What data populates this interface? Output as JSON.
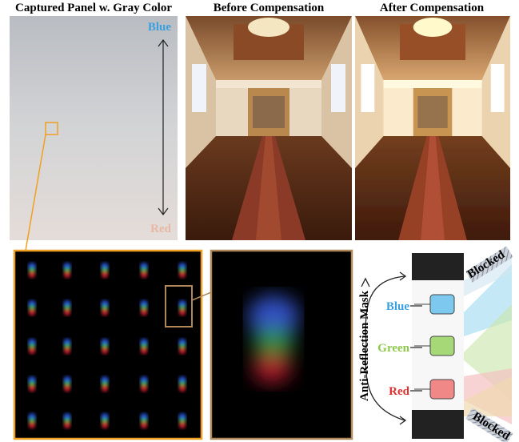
{
  "headers": [
    "Captured Panel w. Gray Color",
    "Before Compensation",
    "After Compensation"
  ],
  "panel_labels": {
    "top": "Blue",
    "bottom": "Red"
  },
  "diagram": {
    "mask_label": "Anti-Reflection Mask",
    "leds": [
      "Blue",
      "Green",
      "Red"
    ],
    "blocked": [
      "Blocked",
      "Blocked"
    ]
  }
}
